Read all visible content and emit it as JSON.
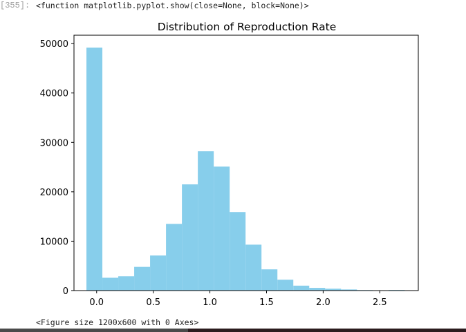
{
  "cell": {
    "prompt": "[355]:",
    "output_repr": "<function matplotlib.pyplot.show(close=None, block=None)>",
    "figure_repr": "<Figure size 1200x600 with 0 Axes>"
  },
  "chart_data": {
    "type": "bar",
    "title": "Distribution of Reproduction Rate",
    "xlabel": "",
    "ylabel": "",
    "color": "#87ceeb",
    "bin_edges": [
      -0.09,
      0.0505,
      0.191,
      0.3315,
      0.472,
      0.6125,
      0.753,
      0.8935,
      1.034,
      1.1745,
      1.315,
      1.4555,
      1.596,
      1.7365,
      1.877,
      2.0175,
      2.158,
      2.2985,
      2.439,
      2.5795,
      2.72
    ],
    "values": [
      49200,
      2600,
      2900,
      4800,
      7100,
      13500,
      21500,
      28200,
      25100,
      15900,
      9300,
      4300,
      2200,
      1000,
      550,
      380,
      230,
      100,
      60,
      120
    ],
    "xlim": [
      -0.2,
      2.84
    ],
    "ylim": [
      0,
      51700
    ],
    "xticks": [
      0.0,
      0.5,
      1.0,
      1.5,
      2.0,
      2.5
    ],
    "xtick_labels": [
      "0.0",
      "0.5",
      "1.0",
      "1.5",
      "2.0",
      "2.5"
    ],
    "yticks": [
      0,
      10000,
      20000,
      30000,
      40000,
      50000
    ],
    "ytick_labels": [
      "0",
      "10000",
      "20000",
      "30000",
      "40000",
      "50000"
    ],
    "grid": false,
    "legend": "none"
  }
}
